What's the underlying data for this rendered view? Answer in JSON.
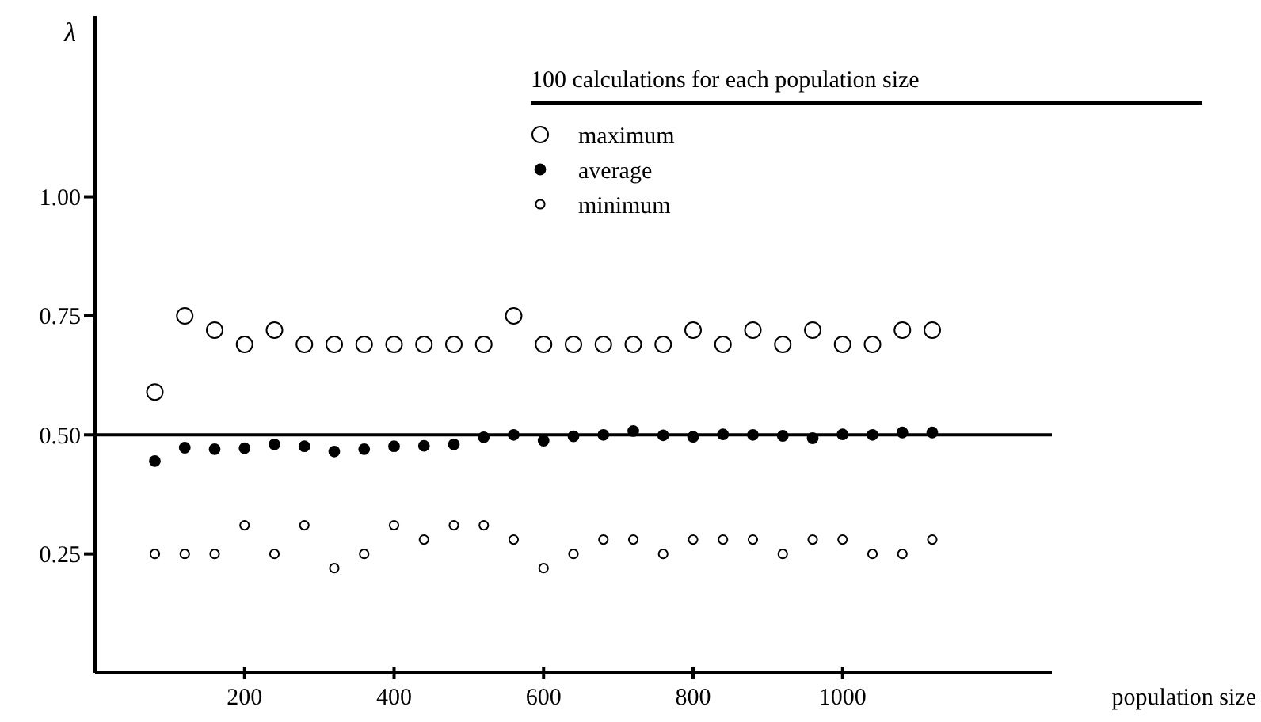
{
  "chart_data": {
    "type": "scatter",
    "xlabel": "population size",
    "ylabel": "λ",
    "legend_title": "100 calculations for each population size",
    "legend": "top right",
    "marker": "circle",
    "grid": false,
    "x": [
      80,
      120,
      160,
      200,
      240,
      280,
      320,
      360,
      400,
      440,
      480,
      520,
      560,
      600,
      640,
      680,
      720,
      760,
      800,
      840,
      880,
      920,
      960,
      1000,
      1040,
      1080,
      1120
    ],
    "xlim": [
      0,
      1280
    ],
    "xticks": [
      200,
      400,
      600,
      800,
      1000
    ],
    "ylim": [
      0,
      1.38
    ],
    "yticks": [
      0.25,
      {
        "value": 0.5,
        "label": "0.50"
      },
      0.75,
      {
        "value": 1,
        "label": "1.00"
      }
    ],
    "ref_lines": [
      {
        "axis": "y",
        "value": 0.5,
        "color": "#000000"
      }
    ],
    "series": [
      {
        "name": "maximum",
        "color": "#000000",
        "values": [
          0.59,
          0.75,
          0.72,
          0.69,
          0.72,
          0.69,
          0.69,
          0.69,
          0.69,
          0.69,
          0.69,
          0.69,
          0.75,
          0.69,
          0.69,
          0.69,
          0.69,
          0.69,
          0.72,
          0.69,
          0.72,
          0.69,
          0.72,
          0.69,
          0.69,
          0.72,
          0.72
        ]
      },
      {
        "name": "average",
        "color": "#000000",
        "values": [
          0.445,
          0.473,
          0.47,
          0.472,
          0.48,
          0.476,
          0.465,
          0.47,
          0.476,
          0.477,
          0.48,
          0.495,
          0.5,
          0.488,
          0.497,
          0.5,
          0.508,
          0.499,
          0.496,
          0.501,
          0.5,
          0.498,
          0.493,
          0.501,
          0.5,
          0.505,
          0.505
        ]
      },
      {
        "name": "minimum",
        "color": "#000000",
        "values": [
          0.25,
          0.25,
          0.25,
          0.31,
          0.25,
          0.31,
          0.22,
          0.25,
          0.31,
          0.28,
          0.31,
          0.31,
          0.28,
          0.22,
          0.25,
          0.28,
          0.28,
          0.25,
          0.28,
          0.28,
          0.28,
          0.25,
          0.28,
          0.28,
          0.25,
          0.25,
          0.28
        ]
      }
    ]
  }
}
